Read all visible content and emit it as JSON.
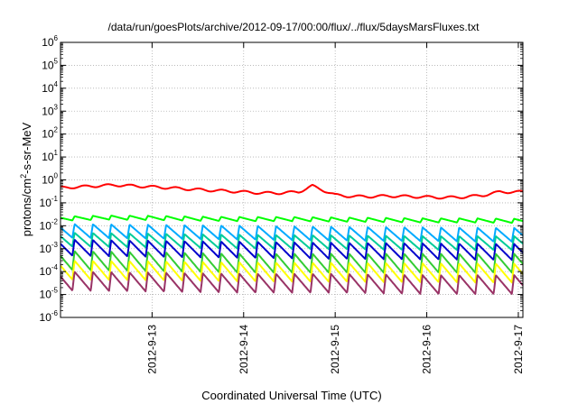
{
  "chart_data": {
    "type": "line",
    "title": "/data/run/goesPlots/archive/2012-09-17/00:00/flux/../flux/5daysMarsFluxes.txt",
    "xlabel": "Coordinated Universal Time (UTC)",
    "ylabel": {
      "prefix": "protons/cm",
      "sup": "2",
      "suffix": "-s-sr-MeV"
    },
    "xlim": [
      "2012-09-12 00:00",
      "2012-09-17 00:00"
    ],
    "x_ticks": [
      "2012-9-13",
      "2012-9-14",
      "2012-9-15",
      "2012-9-16",
      "2012-9-17"
    ],
    "yscale": "log",
    "ylim": [
      1e-06,
      1000000.0
    ],
    "y_ticks": [
      {
        "base": "10",
        "exp": "6"
      },
      {
        "base": "10",
        "exp": "5"
      },
      {
        "base": "10",
        "exp": "4"
      },
      {
        "base": "10",
        "exp": "3"
      },
      {
        "base": "10",
        "exp": "2"
      },
      {
        "base": "10",
        "exp": "1"
      },
      {
        "base": "10",
        "exp": "0"
      },
      {
        "base": "10",
        "exp": "-1"
      },
      {
        "base": "10",
        "exp": "-2"
      },
      {
        "base": "10",
        "exp": "-3"
      },
      {
        "base": "10",
        "exp": "-4"
      },
      {
        "base": "10",
        "exp": "-5"
      },
      {
        "base": "10",
        "exp": "-6"
      }
    ],
    "grid": true,
    "series": [
      {
        "color": "#ff0000",
        "x": [
          0,
          0.2,
          0.4,
          0.6,
          0.8,
          1,
          1.2,
          1.4,
          1.6,
          1.8,
          2,
          2.2,
          2.4,
          2.6,
          2.75,
          2.8,
          2.9,
          3,
          3.2,
          3.4,
          3.6,
          3.8,
          4,
          4.2,
          4.4,
          4.6,
          4.8,
          5
        ],
        "y": [
          0.45,
          0.5,
          0.55,
          0.6,
          0.55,
          0.5,
          0.45,
          0.4,
          0.36,
          0.33,
          0.3,
          0.27,
          0.27,
          0.3,
          0.55,
          0.45,
          0.32,
          0.22,
          0.19,
          0.19,
          0.2,
          0.19,
          0.18,
          0.17,
          0.18,
          0.21,
          0.3,
          0.3
        ]
      },
      {
        "color": "#00ff00",
        "x": [
          0,
          0.5,
          1,
          1.5,
          2,
          2.5,
          3,
          3.5,
          4,
          4.5,
          5
        ],
        "y": [
          0.025,
          0.028,
          0.027,
          0.025,
          0.024,
          0.024,
          0.023,
          0.022,
          0.021,
          0.021,
          0.02
        ]
      },
      {
        "color": "#00aaff",
        "x": [
          0,
          1,
          2,
          3,
          4,
          5
        ],
        "y": [
          0.012,
          0.011,
          0.01,
          0.009,
          0.0085,
          0.008
        ]
      },
      {
        "color": "#00cc99",
        "x": [
          0,
          1,
          2,
          3,
          4,
          5
        ],
        "y": [
          0.005,
          0.0045,
          0.004,
          0.0038,
          0.0035,
          0.0035
        ]
      },
      {
        "color": "#0000cc",
        "x": [
          0,
          1,
          2,
          3,
          4,
          5
        ],
        "y": [
          0.0025,
          0.0022,
          0.002,
          0.0018,
          0.0017,
          0.0016
        ]
      },
      {
        "color": "#33cc33",
        "x": [
          0,
          1,
          2,
          3,
          4,
          5
        ],
        "y": [
          0.0008,
          0.0007,
          0.0006,
          0.0006,
          0.0006,
          0.0006
        ]
      },
      {
        "color": "#ffff00",
        "x": [
          0,
          1,
          2,
          3,
          4,
          5
        ],
        "y": [
          0.0003,
          0.00028,
          0.00025,
          0.00024,
          0.00023,
          0.00022
        ]
      },
      {
        "color": "#993366",
        "x": [
          0,
          1,
          2,
          3,
          4,
          5
        ],
        "y": [
          0.0001,
          9e-05,
          8e-05,
          8e-05,
          7e-05,
          7e-05
        ]
      }
    ],
    "sawtooth_series": [
      2,
      3,
      4,
      5,
      6,
      7
    ],
    "sawtooth_cycles_per_day": 5,
    "sawtooth_trough_ratio": [
      0.25,
      0.25,
      0.2,
      0.15,
      0.15,
      0.15
    ]
  }
}
